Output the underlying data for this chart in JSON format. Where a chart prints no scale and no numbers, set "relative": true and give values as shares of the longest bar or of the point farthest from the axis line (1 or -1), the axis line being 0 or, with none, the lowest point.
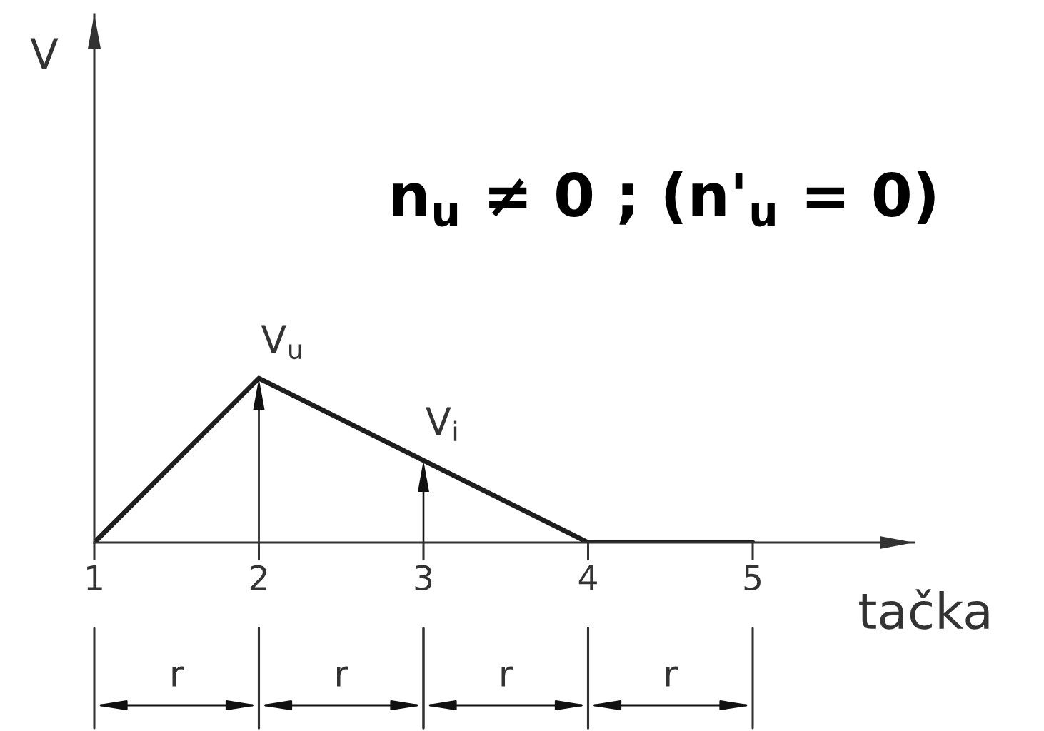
{
  "chart_data": {
    "type": "line",
    "title": "n$_{u}$ ≠ 0 ; (n'$_{u}$ = 0)",
    "xlabel": "tačka",
    "categories": [
      "1",
      "2",
      "3",
      "4",
      "5"
    ],
    "relative": true,
    "series": [
      {
        "color": "#1e1e1e",
        "values": [
          0,
          1,
          0.5,
          0,
          0
        ]
      }
    ],
    "annotations": [
      "V",
      {
        "text": "V$_{u}$",
        "x": "2",
        "y": 1
      },
      {
        "text": "V$_{i}$",
        "x": "3",
        "y": 0.5
      },
      "r",
      "r",
      "r",
      "r"
    ]
  }
}
